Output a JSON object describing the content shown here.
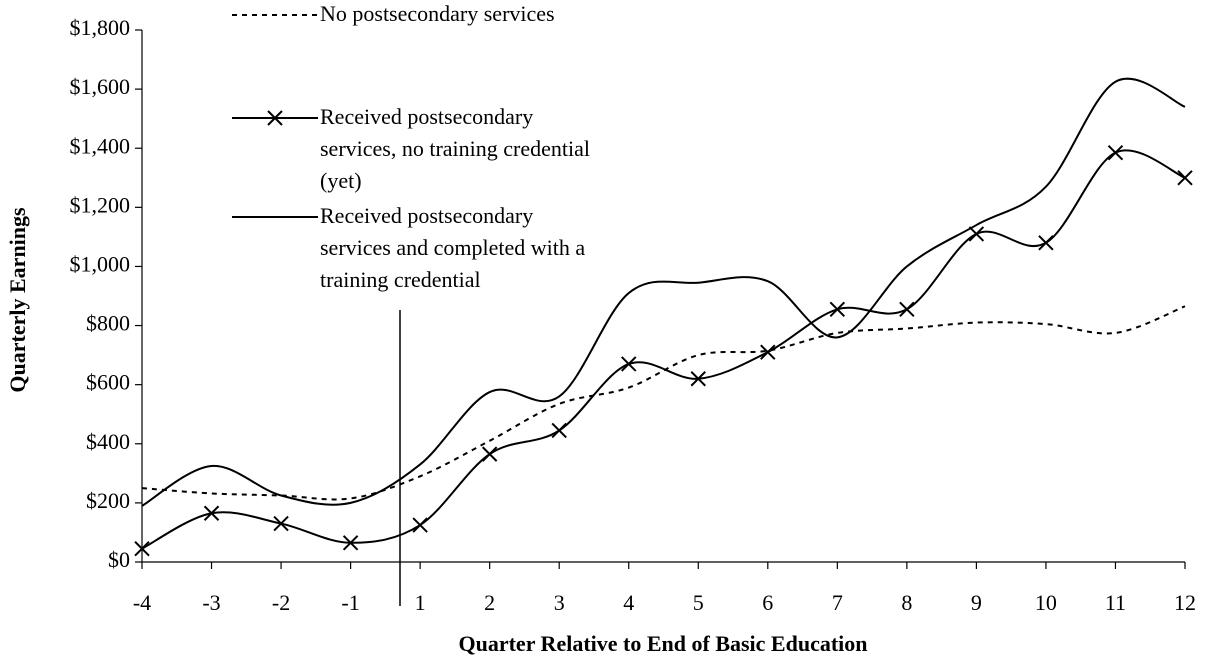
{
  "chart_data": {
    "type": "line",
    "xlabel": "Quarter Relative to End of  Basic Education",
    "ylabel": "Quarterly Earnings",
    "categories": [
      "-4",
      "-3",
      "-2",
      "-1",
      "1",
      "2",
      "3",
      "4",
      "5",
      "6",
      "7",
      "8",
      "9",
      "10",
      "11",
      "12"
    ],
    "series": [
      {
        "name": "No postsecondary services",
        "color": "#000000",
        "dash": "5,5",
        "marker": "none",
        "values": [
          250,
          232,
          225,
          215,
          290,
          410,
          535,
          590,
          700,
          715,
          775,
          790,
          810,
          805,
          775,
          865
        ]
      },
      {
        "name": "Received postsecondary services, no training credential (yet)",
        "color": "#000000",
        "dash": "none",
        "marker": "x",
        "values": [
          45,
          165,
          130,
          65,
          125,
          365,
          445,
          670,
          620,
          710,
          855,
          855,
          1110,
          1080,
          1385,
          1300
        ]
      },
      {
        "name": "Received postsecondary services and completed with a training credential",
        "color": "#000000",
        "dash": "none",
        "marker": "none",
        "values": [
          190,
          325,
          225,
          200,
          330,
          575,
          560,
          910,
          945,
          950,
          760,
          1000,
          1140,
          1270,
          1625,
          1540
        ]
      }
    ],
    "ylim": [
      0,
      1800
    ],
    "yticks": [
      {
        "value": 0,
        "label": "$0"
      },
      {
        "value": 200,
        "label": "$200"
      },
      {
        "value": 400,
        "label": "$400"
      },
      {
        "value": 600,
        "label": "$600"
      },
      {
        "value": 800,
        "label": "$800"
      },
      {
        "value": 1000,
        "label": "$1,000"
      },
      {
        "value": 1200,
        "label": "$1,200"
      },
      {
        "value": 1400,
        "label": "$1,400"
      },
      {
        "value": 1600,
        "label": "$1,600"
      },
      {
        "value": 1800,
        "label": "$1,800"
      }
    ],
    "grid": false
  }
}
